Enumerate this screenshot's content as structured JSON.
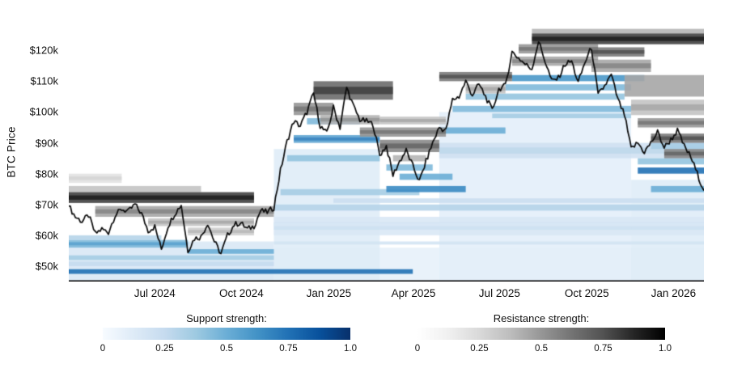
{
  "chart": {
    "y_axis_title": "BTC Price"
  },
  "legend": {
    "support": {
      "title": "Support strength:",
      "ticks": [
        "0",
        "0.25",
        "0.5",
        "0.75",
        "1.0"
      ]
    },
    "resistance": {
      "title": "Resistance strength:",
      "ticks": [
        "0",
        "0.25",
        "0.5",
        "0.75",
        "1.0"
      ]
    }
  },
  "chart_data": {
    "type": "heatmap",
    "title": "",
    "ylabel": "BTC Price",
    "xlabel": "",
    "y_axis": {
      "tick_labels": [
        "$50k",
        "$60k",
        "$70k",
        "$80k",
        "$90k",
        "$100k",
        "$110k",
        "$120k"
      ],
      "tick_values": [
        50,
        60,
        70,
        80,
        90,
        100,
        110,
        120
      ],
      "range": [
        45,
        129
      ]
    },
    "x_axis": {
      "tick_labels": [
        "Jul 2024",
        "Oct 2024",
        "Jan 2025",
        "Apr 2025",
        "Jul 2025",
        "Oct 2025",
        "Jan 2026"
      ],
      "tick_weeks": [
        13,
        26.1,
        39.3,
        52.1,
        65.1,
        78.3,
        91.4
      ]
    },
    "t_range": [
      0,
      96
    ],
    "price_line": {
      "name": "BTC price",
      "unit": "USD thousands, weekly",
      "weekly_values": [
        69.5,
        66,
        64.5,
        66.5,
        60.5,
        62,
        61,
        66.5,
        68.5,
        67.7,
        70,
        67,
        61.5,
        62.8,
        55.5,
        63,
        67,
        69.9,
        55,
        59,
        59.5,
        64,
        58,
        54,
        60,
        63.5,
        64,
        62,
        63,
        68,
        67.5,
        69,
        81,
        90.5,
        97,
        95.5,
        100,
        106,
        95.5,
        93,
        101.5,
        95,
        108,
        102,
        97.5,
        97,
        96,
        86,
        89,
        79.5,
        84,
        87.5,
        82.5,
        77.5,
        84,
        90,
        95,
        94,
        104,
        105,
        110,
        105.5,
        109,
        105,
        100.5,
        107.5,
        108.5,
        119.5,
        117.5,
        115.5,
        114,
        123,
        116.5,
        110,
        111,
        115.5,
        116.5,
        109.5,
        116,
        121,
        105.5,
        108.5,
        112,
        104,
        99,
        88,
        90,
        87,
        90,
        93.5,
        88.5,
        91,
        94,
        89,
        85.5,
        80,
        74.5
      ]
    },
    "band_format": "[price_low_k, price_high_k, week_start, week_end, strength_0_to_1]",
    "support_bands": [
      [
        45,
        58,
        0,
        31,
        0.15
      ],
      [
        56,
        58.5,
        0,
        18,
        0.45
      ],
      [
        58.5,
        60,
        0,
        14,
        0.3
      ],
      [
        47.5,
        49,
        0,
        52,
        0.75
      ],
      [
        52,
        53.5,
        0,
        31,
        0.35
      ],
      [
        54,
        55.5,
        18,
        31,
        0.5
      ],
      [
        50,
        51.5,
        0,
        31,
        0.25
      ],
      [
        45,
        88,
        31,
        47,
        0.12
      ],
      [
        68,
        70,
        31,
        96,
        0.3
      ],
      [
        73,
        75,
        32,
        53,
        0.35
      ],
      [
        84,
        86,
        33,
        47,
        0.4
      ],
      [
        90,
        92.5,
        34,
        47,
        0.55
      ],
      [
        96,
        98,
        36,
        44,
        0.45
      ],
      [
        60,
        66,
        31,
        96,
        0.15
      ],
      [
        74,
        76,
        48,
        60,
        0.65
      ],
      [
        78,
        80,
        50,
        58,
        0.5
      ],
      [
        81,
        83,
        48,
        55,
        0.45
      ],
      [
        45,
        100,
        56,
        85,
        0.1
      ],
      [
        93,
        95,
        56,
        66,
        0.5
      ],
      [
        100,
        102,
        58,
        85,
        0.45
      ],
      [
        104,
        106,
        60,
        84,
        0.4
      ],
      [
        107,
        109,
        66,
        85,
        0.45
      ],
      [
        110,
        112,
        67,
        87,
        0.6
      ],
      [
        98,
        99.5,
        64,
        85,
        0.35
      ],
      [
        85,
        90,
        56,
        96,
        0.2
      ],
      [
        80,
        82,
        86,
        96,
        0.75
      ],
      [
        74,
        76,
        88,
        96,
        0.5
      ],
      [
        83,
        85,
        86,
        96,
        0.4
      ],
      [
        88,
        90,
        88,
        96,
        0.35
      ],
      [
        45,
        78,
        85,
        96,
        0.12
      ],
      [
        57,
        58,
        31,
        96,
        0.18
      ],
      [
        63,
        64,
        31,
        96,
        0.15
      ],
      [
        45,
        56,
        31,
        96,
        0.08
      ],
      [
        70.5,
        72,
        40,
        96,
        0.22
      ]
    ],
    "resistance_bands": [
      [
        70.5,
        74,
        0,
        28,
        0.8
      ],
      [
        66,
        69.5,
        4,
        31,
        0.45
      ],
      [
        63,
        65.5,
        12,
        28,
        0.35
      ],
      [
        60,
        62.5,
        18,
        28,
        0.3
      ],
      [
        74,
        76,
        0,
        20,
        0.35
      ],
      [
        77,
        80,
        0,
        8,
        0.2
      ],
      [
        99,
        103,
        34,
        40,
        0.5
      ],
      [
        104,
        110,
        37,
        49,
        0.65
      ],
      [
        96,
        99,
        38,
        47,
        0.4
      ],
      [
        92,
        95,
        44,
        57,
        0.5
      ],
      [
        96,
        98.5,
        47,
        57,
        0.35
      ],
      [
        87,
        91,
        47,
        56,
        0.55
      ],
      [
        84,
        86,
        49,
        54,
        0.4
      ],
      [
        110,
        113,
        56,
        67,
        0.6
      ],
      [
        106,
        109,
        60,
        66,
        0.35
      ],
      [
        115,
        118,
        67,
        80,
        0.45
      ],
      [
        119,
        122,
        68,
        80,
        0.5
      ],
      [
        122,
        125.5,
        70,
        96,
        0.8
      ],
      [
        125.5,
        127,
        70,
        96,
        0.4
      ],
      [
        118,
        121,
        79,
        87,
        0.6
      ],
      [
        113,
        117,
        79,
        88,
        0.45
      ],
      [
        105,
        112,
        84,
        96,
        0.45
      ],
      [
        99,
        104,
        85,
        96,
        0.35
      ],
      [
        95,
        98,
        86,
        96,
        0.5
      ],
      [
        90,
        93,
        88,
        96,
        0.6
      ],
      [
        85,
        88,
        90,
        96,
        0.55
      ]
    ],
    "colormaps": {
      "support": [
        "#f7fbff",
        "#deebf7",
        "#c6dbef",
        "#9ecae1",
        "#6baed6",
        "#4292c6",
        "#2171b5",
        "#08519c",
        "#08306b"
      ],
      "resistance": [
        "#ffffff",
        "#f0f0f0",
        "#d9d9d9",
        "#bdbdbd",
        "#969696",
        "#737373",
        "#525252",
        "#252525",
        "#000000"
      ]
    },
    "legend_position": "bottom",
    "grid": false
  }
}
